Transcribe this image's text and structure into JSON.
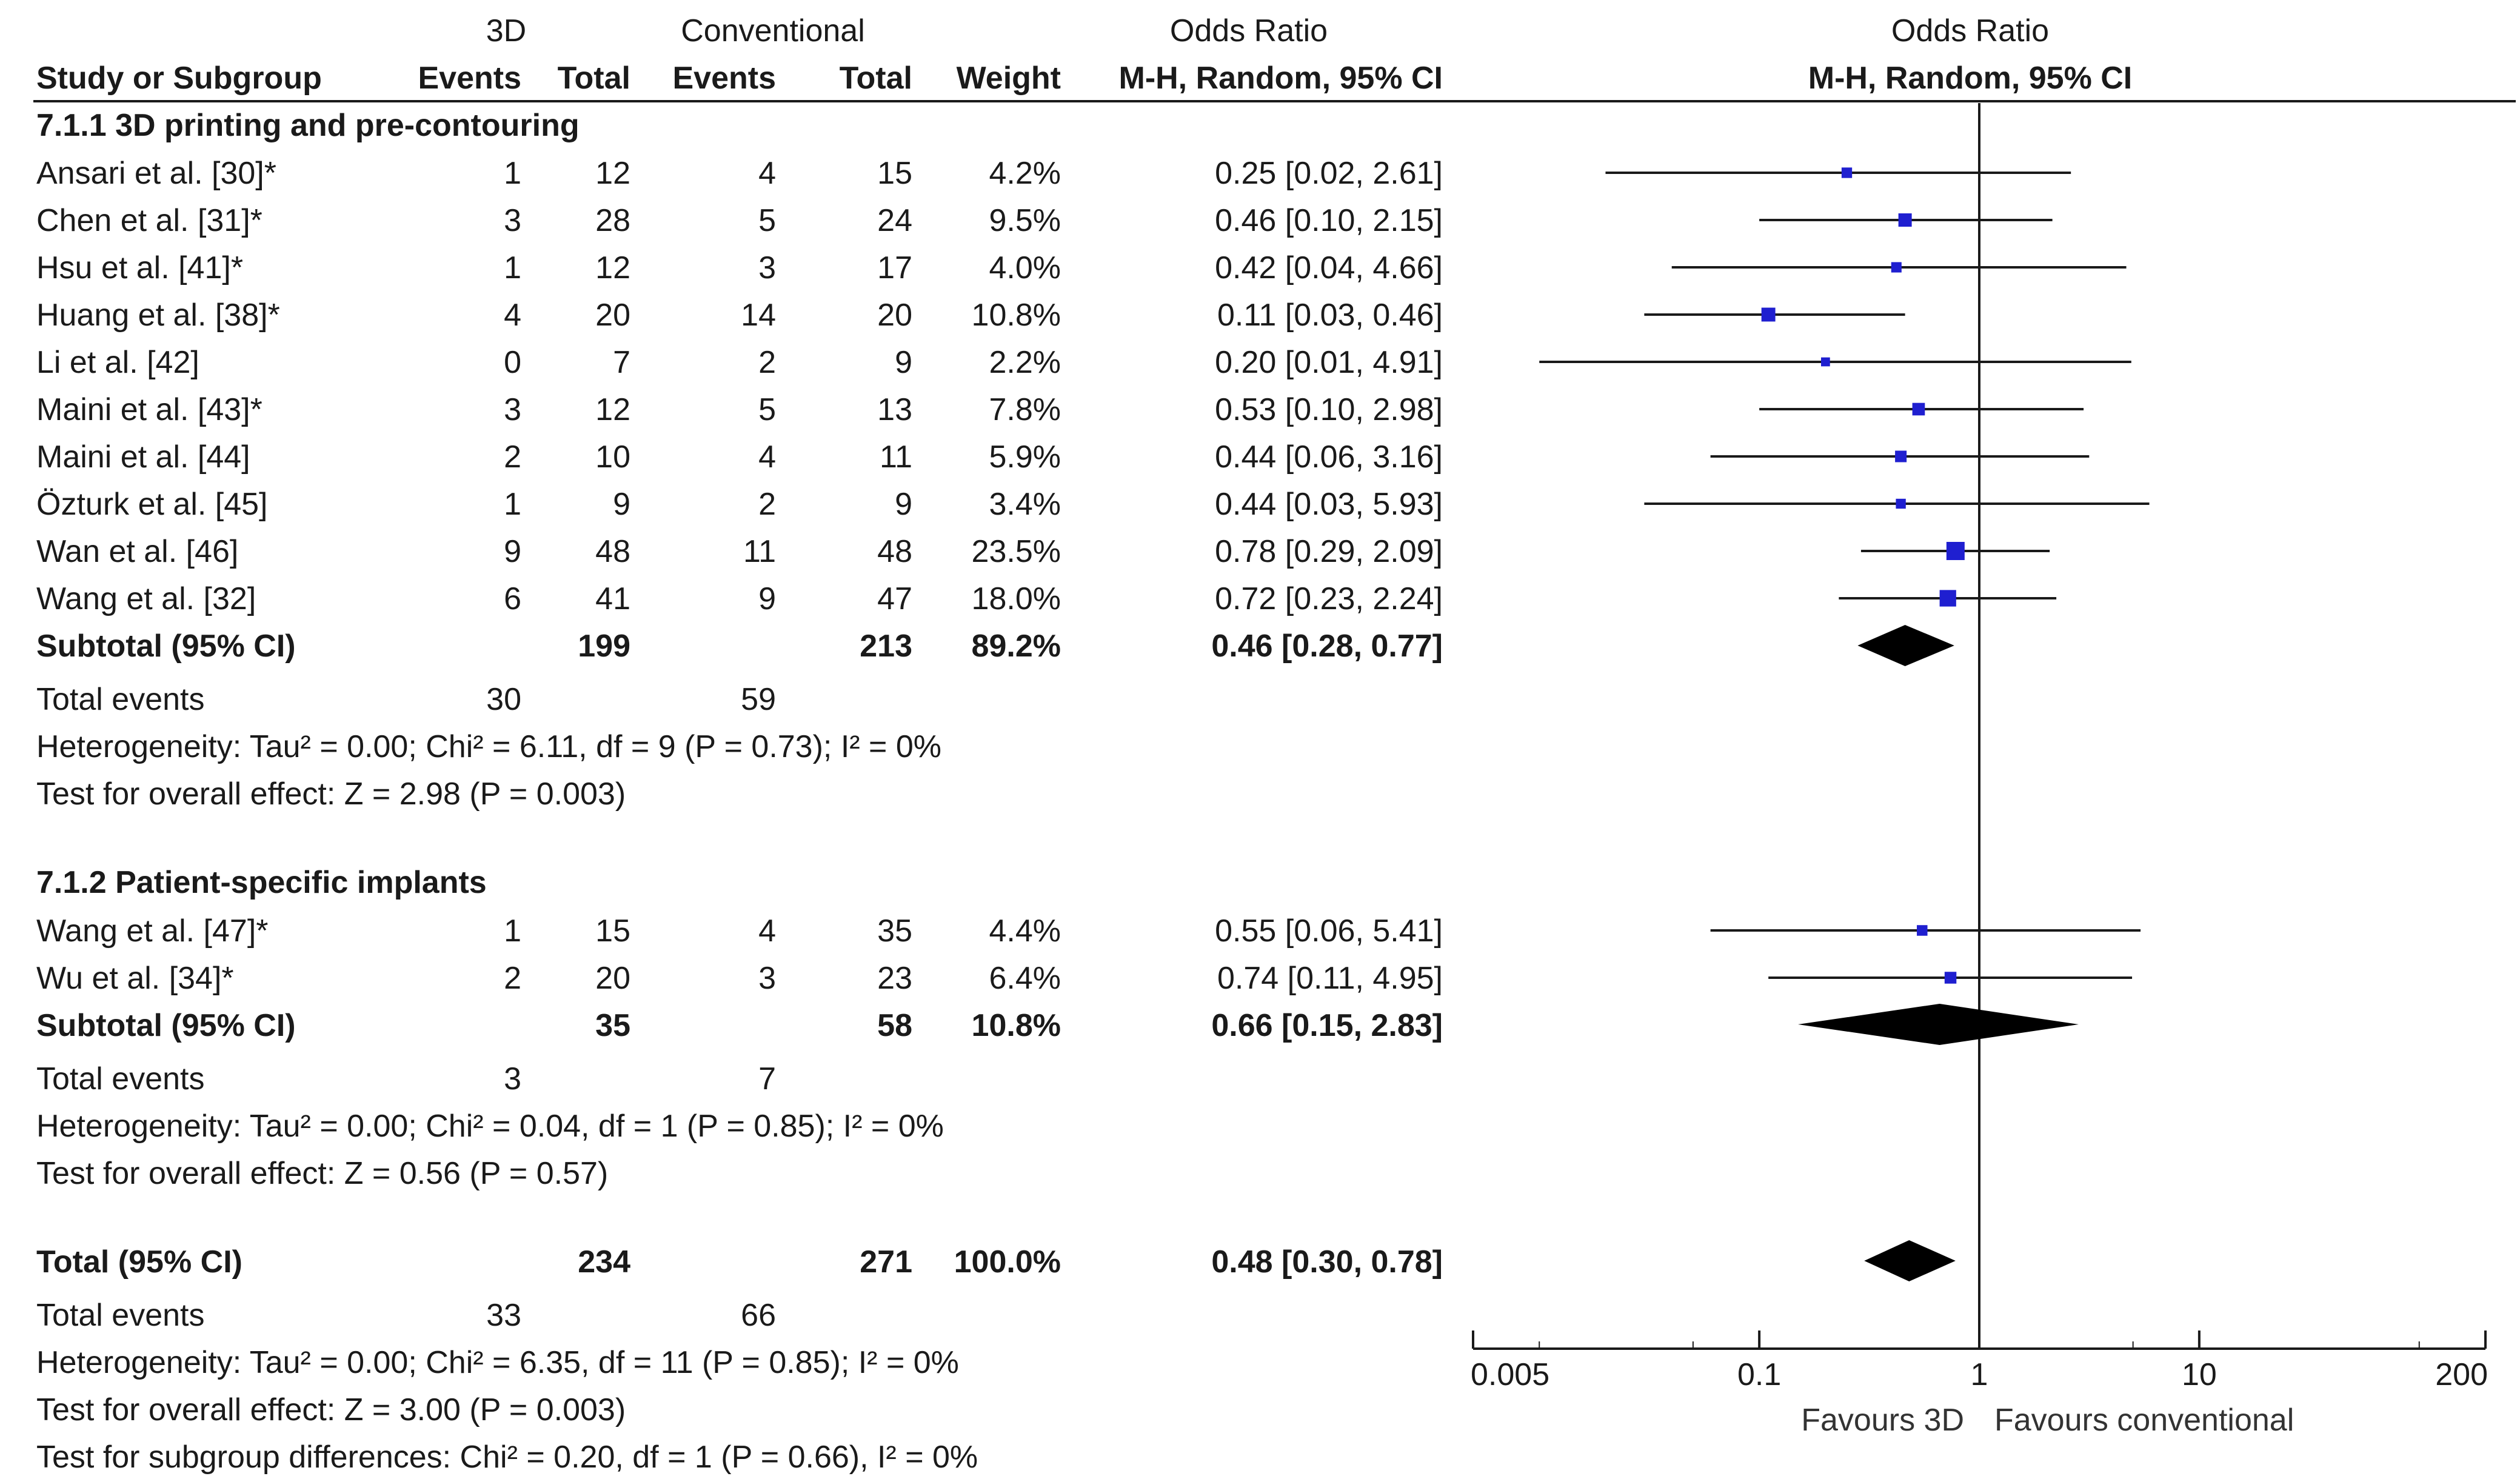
{
  "header": {
    "group1_label": "3D",
    "group2_label": "Conventional",
    "or_label_left": "Odds Ratio",
    "or_label_right": "Odds Ratio",
    "col_study": "Study or Subgroup",
    "col_events1": "Events",
    "col_total1": "Total",
    "col_events2": "Events",
    "col_total2": "Total",
    "col_weight": "Weight",
    "col_method_left": "M-H, Random, 95% CI",
    "col_method_right": "M-H, Random, 95% CI"
  },
  "subgroups": [
    {
      "title": "7.1.1 3D printing and pre-contouring",
      "studies": [
        {
          "name": "Ansari et al. [30]*",
          "e1": "1",
          "t1": "12",
          "e2": "4",
          "t2": "15",
          "weight": "4.2%",
          "ci_text": "0.25 [0.02, 2.61]"
        },
        {
          "name": "Chen et al. [31]*",
          "e1": "3",
          "t1": "28",
          "e2": "5",
          "t2": "24",
          "weight": "9.5%",
          "ci_text": "0.46 [0.10, 2.15]"
        },
        {
          "name": "Hsu et al. [41]*",
          "e1": "1",
          "t1": "12",
          "e2": "3",
          "t2": "17",
          "weight": "4.0%",
          "ci_text": "0.42 [0.04, 4.66]"
        },
        {
          "name": "Huang et al. [38]*",
          "e1": "4",
          "t1": "20",
          "e2": "14",
          "t2": "20",
          "weight": "10.8%",
          "ci_text": "0.11 [0.03, 0.46]"
        },
        {
          "name": "Li et al. [42]",
          "e1": "0",
          "t1": "7",
          "e2": "2",
          "t2": "9",
          "weight": "2.2%",
          "ci_text": "0.20 [0.01, 4.91]"
        },
        {
          "name": "Maini et al. [43]*",
          "e1": "3",
          "t1": "12",
          "e2": "5",
          "t2": "13",
          "weight": "7.8%",
          "ci_text": "0.53 [0.10, 2.98]"
        },
        {
          "name": "Maini et al. [44]",
          "e1": "2",
          "t1": "10",
          "e2": "4",
          "t2": "11",
          "weight": "5.9%",
          "ci_text": "0.44 [0.06, 3.16]"
        },
        {
          "name": "Özturk et al. [45]",
          "e1": "1",
          "t1": "9",
          "e2": "2",
          "t2": "9",
          "weight": "3.4%",
          "ci_text": "0.44 [0.03, 5.93]"
        },
        {
          "name": "Wan et al. [46]",
          "e1": "9",
          "t1": "48",
          "e2": "11",
          "t2": "48",
          "weight": "23.5%",
          "ci_text": "0.78 [0.29, 2.09]"
        },
        {
          "name": "Wang et al. [32]",
          "e1": "6",
          "t1": "41",
          "e2": "9",
          "t2": "47",
          "weight": "18.0%",
          "ci_text": "0.72 [0.23, 2.24]"
        }
      ],
      "subtotal": {
        "label": "Subtotal (95% CI)",
        "t1": "199",
        "t2": "213",
        "weight": "89.2%",
        "ci_text": "0.46 [0.28, 0.77]"
      },
      "total_events": {
        "label": "Total events",
        "e1": "30",
        "e2": "59"
      },
      "heterogeneity": "Heterogeneity: Tau² = 0.00; Chi² = 6.11, df = 9 (P = 0.73); I² = 0%",
      "overall_effect": "Test for overall effect: Z = 2.98 (P = 0.003)"
    },
    {
      "title": "7.1.2 Patient-specific implants",
      "studies": [
        {
          "name": "Wang et al. [47]*",
          "e1": "1",
          "t1": "15",
          "e2": "4",
          "t2": "35",
          "weight": "4.4%",
          "ci_text": "0.55 [0.06, 5.41]"
        },
        {
          "name": "Wu et al. [34]*",
          "e1": "2",
          "t1": "20",
          "e2": "3",
          "t2": "23",
          "weight": "6.4%",
          "ci_text": "0.74 [0.11, 4.95]"
        }
      ],
      "subtotal": {
        "label": "Subtotal (95% CI)",
        "t1": "35",
        "t2": "58",
        "weight": "10.8%",
        "ci_text": "0.66 [0.15, 2.83]"
      },
      "total_events": {
        "label": "Total events",
        "e1": "3",
        "e2": "7"
      },
      "heterogeneity": "Heterogeneity: Tau² = 0.00; Chi² = 0.04, df = 1 (P = 0.85); I² = 0%",
      "overall_effect": "Test for overall effect: Z = 0.56 (P = 0.57)"
    }
  ],
  "total": {
    "label": "Total (95% CI)",
    "t1": "234",
    "t2": "271",
    "weight": "100.0%",
    "ci_text": "0.48 [0.30, 0.78]",
    "total_events": {
      "label": "Total events",
      "e1": "33",
      "e2": "66"
    },
    "heterogeneity": "Heterogeneity: Tau² = 0.00; Chi² = 6.35, df = 11 (P = 0.85); I² = 0%",
    "overall_effect": "Test for overall effect: Z = 3.00 (P = 0.003)",
    "subgroup_differences": "Test for subgroup differences: Chi² = 0.20, df = 1 (P = 0.66), I² = 0%"
  },
  "chart_data": {
    "type": "forest",
    "title": "Odds Ratio",
    "subtitle": "M-H, Random, 95% CI",
    "x_scale": "log",
    "xlim": [
      0.005,
      200
    ],
    "ticks": [
      0.005,
      0.1,
      1,
      10,
      200
    ],
    "tick_labels": [
      "0.005",
      "0.1",
      "1",
      "10",
      "200"
    ],
    "reference_line": 1,
    "favours_left": "Favours 3D",
    "favours_right": "Favours conventional",
    "studies": [
      {
        "name": "Ansari et al. [30]*",
        "or": 0.25,
        "lo": 0.02,
        "hi": 2.61,
        "weight": 4.2
      },
      {
        "name": "Chen et al. [31]*",
        "or": 0.46,
        "lo": 0.1,
        "hi": 2.15,
        "weight": 9.5
      },
      {
        "name": "Hsu et al. [41]*",
        "or": 0.42,
        "lo": 0.04,
        "hi": 4.66,
        "weight": 4.0
      },
      {
        "name": "Huang et al. [38]*",
        "or": 0.11,
        "lo": 0.03,
        "hi": 0.46,
        "weight": 10.8
      },
      {
        "name": "Li et al. [42]",
        "or": 0.2,
        "lo": 0.01,
        "hi": 4.91,
        "weight": 2.2
      },
      {
        "name": "Maini et al. [43]*",
        "or": 0.53,
        "lo": 0.1,
        "hi": 2.98,
        "weight": 7.8
      },
      {
        "name": "Maini et al. [44]",
        "or": 0.44,
        "lo": 0.06,
        "hi": 3.16,
        "weight": 5.9
      },
      {
        "name": "Özturk et al. [45]",
        "or": 0.44,
        "lo": 0.03,
        "hi": 5.93,
        "weight": 3.4
      },
      {
        "name": "Wan et al. [46]",
        "or": 0.78,
        "lo": 0.29,
        "hi": 2.09,
        "weight": 23.5
      },
      {
        "name": "Wang et al. [32]",
        "or": 0.72,
        "lo": 0.23,
        "hi": 2.24,
        "weight": 18.0
      },
      {
        "name": "Wang et al. [47]*",
        "or": 0.55,
        "lo": 0.06,
        "hi": 5.41,
        "weight": 4.4
      },
      {
        "name": "Wu et al. [34]*",
        "or": 0.74,
        "lo": 0.11,
        "hi": 4.95,
        "weight": 6.4
      }
    ],
    "diamonds": [
      {
        "name": "Subtotal 7.1.1",
        "or": 0.46,
        "lo": 0.28,
        "hi": 0.77
      },
      {
        "name": "Subtotal 7.1.2",
        "or": 0.66,
        "lo": 0.15,
        "hi": 2.83
      },
      {
        "name": "Total",
        "or": 0.48,
        "lo": 0.3,
        "hi": 0.78
      }
    ],
    "colors": {
      "marker": "#1f1fd0",
      "line": "#1a1a1a",
      "diamond": "#000000"
    }
  }
}
